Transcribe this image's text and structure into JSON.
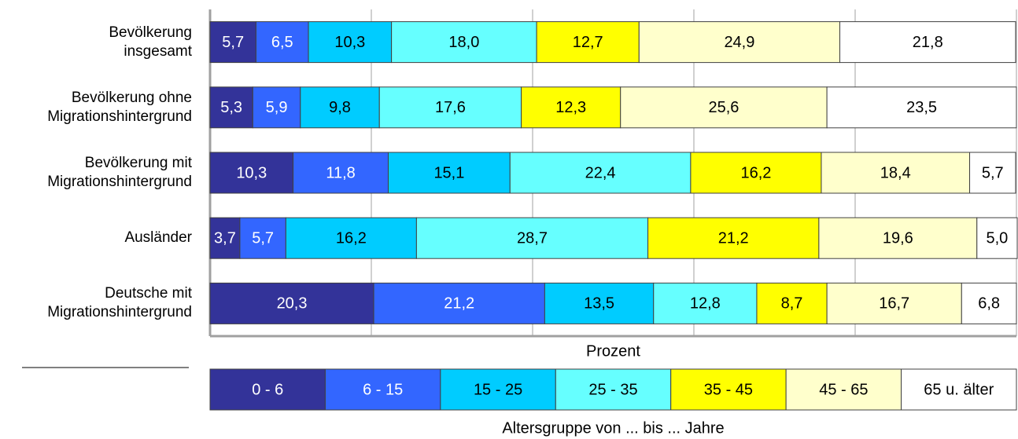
{
  "chart_data": {
    "type": "stacked_barh",
    "categories": [
      "Bevölkerung\ninsgesamt",
      "Bevölkerung ohne\nMigrationshintergrund",
      "Bevölkerung mit\nMigrationshintergrund",
      "Ausländer",
      "Deutsche mit\nMigrationshintergrund"
    ],
    "x_label": "Prozent",
    "legend_title": "Altersgruppe von ... bis ... Jahre",
    "xlim": [
      0,
      100
    ],
    "xticks": [
      0,
      20,
      40,
      60,
      80,
      100
    ],
    "grid": true,
    "legend": "bottom",
    "series": [
      {
        "name": "0 - 6",
        "color": "#333399",
        "text_color": "#ffffff",
        "values": [
          5.7,
          5.3,
          10.3,
          3.7,
          20.3
        ],
        "value_labels": [
          "5,7",
          "5,3",
          "10,3",
          "3,7",
          "20,3"
        ]
      },
      {
        "name": "6 - 15",
        "color": "#3366ff",
        "text_color": "#ffffff",
        "values": [
          6.5,
          5.9,
          11.8,
          5.7,
          21.2
        ],
        "value_labels": [
          "6,5",
          "5,9",
          "11,8",
          "5,7",
          "21,2"
        ]
      },
      {
        "name": "15 - 25",
        "color": "#00ccff",
        "text_color": "#000000",
        "values": [
          10.3,
          9.8,
          15.1,
          16.2,
          13.5
        ],
        "value_labels": [
          "10,3",
          "9,8",
          "15,1",
          "16,2",
          "13,5"
        ]
      },
      {
        "name": "25 - 35",
        "color": "#66ffff",
        "text_color": "#000000",
        "values": [
          18.0,
          17.6,
          22.4,
          28.7,
          12.8
        ],
        "value_labels": [
          "18,0",
          "17,6",
          "22,4",
          "28,7",
          "12,8"
        ]
      },
      {
        "name": "35 - 45",
        "color": "#ffff00",
        "text_color": "#000000",
        "values": [
          12.7,
          12.3,
          16.2,
          21.2,
          8.7
        ],
        "value_labels": [
          "12,7",
          "12,3",
          "16,2",
          "21,2",
          "8,7"
        ]
      },
      {
        "name": "45 - 65",
        "color": "#ffffcc",
        "text_color": "#000000",
        "values": [
          24.9,
          25.6,
          18.4,
          19.6,
          16.7
        ],
        "value_labels": [
          "24,9",
          "25,6",
          "18,4",
          "19,6",
          "16,7"
        ]
      },
      {
        "name": "65 u. älter",
        "color": "#ffffff",
        "text_color": "#000000",
        "values": [
          21.8,
          23.5,
          5.7,
          5.0,
          6.8
        ],
        "value_labels": [
          "21,8",
          "23,5",
          "5,7",
          "5,0",
          "6,8"
        ]
      }
    ]
  }
}
